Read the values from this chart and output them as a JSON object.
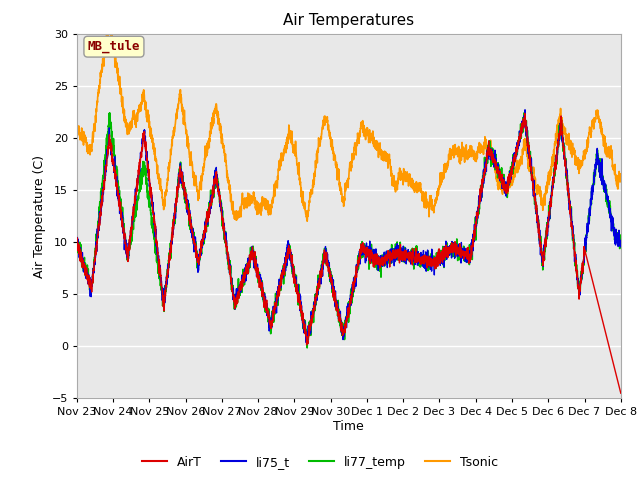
{
  "title": "Air Temperatures",
  "xlabel": "Time",
  "ylabel": "Air Temperature (C)",
  "ylim": [
    -5,
    30
  ],
  "yticks": [
    -5,
    0,
    5,
    10,
    15,
    20,
    25,
    30
  ],
  "plot_bg_color": "#e8e8e8",
  "fig_bg_color": "#ffffff",
  "annotation_label": "MB_tule",
  "annotation_color": "#8b0000",
  "annotation_bg": "#ffffcc",
  "annotation_border": "#999999",
  "colors": {
    "AirT": "#dd0000",
    "li75_t": "#0000dd",
    "li77_temp": "#00bb00",
    "Tsonic": "#ff9900"
  },
  "linewidths": {
    "AirT": 1.0,
    "li75_t": 1.0,
    "li77_temp": 1.2,
    "Tsonic": 1.2
  },
  "legend_entries": [
    "AirT",
    "li75_t",
    "li77_temp",
    "Tsonic"
  ],
  "tick_labels": [
    "Nov 23",
    "Nov 24",
    "Nov 25",
    "Nov 26",
    "Nov 27",
    "Nov 28",
    "Nov 29",
    "Nov 30",
    "Dec 1",
    "Dec 2",
    "Dec 3",
    "Dec 4",
    "Dec 5",
    "Dec 6",
    "Dec 7",
    "Dec 8"
  ],
  "num_points": 3000,
  "seed": 42
}
